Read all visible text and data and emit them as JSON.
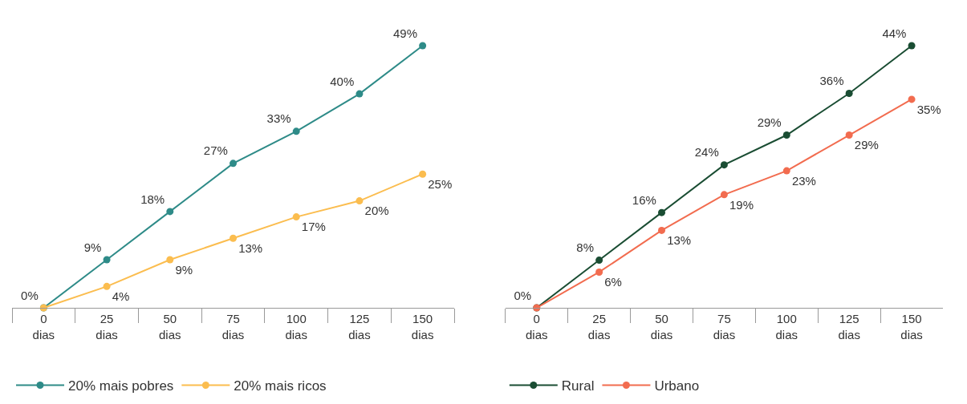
{
  "chart_data": [
    {
      "type": "line",
      "categories": [
        "0 dias",
        "25 dias",
        "50 dias",
        "75 dias",
        "100 dias",
        "125 dias",
        "150 dias"
      ],
      "marker": "circle",
      "legend": "bottom",
      "tick_labels": "x",
      "series": [
        {
          "name": "20% mais pobres",
          "color": "#2e8b88",
          "values": [
            0,
            9,
            18,
            27,
            33,
            40,
            49
          ],
          "value_labels": [
            "0%",
            "9%",
            "18%",
            "27%",
            "33%",
            "40%",
            "49%"
          ]
        },
        {
          "name": "20% mais ricos",
          "color": "#fbbd4f",
          "values": [
            0,
            4,
            9,
            13,
            17,
            20,
            25
          ],
          "value_labels": [
            null,
            "4%",
            "9%",
            "13%",
            "17%",
            "20%",
            "25%"
          ]
        }
      ]
    },
    {
      "type": "line",
      "categories": [
        "0 dias",
        "25 dias",
        "50 dias",
        "75 dias",
        "100 dias",
        "125 dias",
        "150 dias"
      ],
      "marker": "circle",
      "legend": "bottom",
      "tick_labels": "x",
      "series": [
        {
          "name": "Rural",
          "color": "#1a4d33",
          "values": [
            0,
            8,
            16,
            24,
            29,
            36,
            44
          ],
          "value_labels": [
            "0%",
            "8%",
            "16%",
            "24%",
            "29%",
            "36%",
            "44%"
          ]
        },
        {
          "name": "Urbano",
          "color": "#f26c4f",
          "values": [
            0,
            6,
            13,
            19,
            23,
            29,
            35
          ],
          "value_labels": [
            null,
            "6%",
            "13%",
            "19%",
            "23%",
            "29%",
            "35%"
          ]
        }
      ]
    }
  ]
}
